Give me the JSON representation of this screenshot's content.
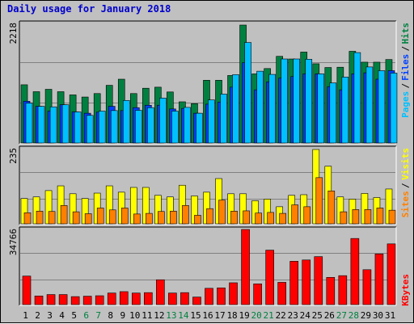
{
  "title": "Daily usage for January 2018",
  "colors": {
    "background": "#C0C0C0",
    "pages": "#00C0FF",
    "files": "#0040FF",
    "hits": "#008040",
    "sites": "#FF8000",
    "visits": "#FFFF00",
    "kbytes": "#FF0000"
  },
  "chart_data": [
    {
      "type": "bar",
      "panel": "top",
      "categories": [
        "1",
        "2",
        "3",
        "4",
        "5",
        "6",
        "7",
        "8",
        "9",
        "10",
        "11",
        "12",
        "13",
        "14",
        "15",
        "16",
        "17",
        "18",
        "19",
        "20",
        "21",
        "22",
        "23",
        "24",
        "25",
        "26",
        "27",
        "28",
        "29",
        "30",
        "31"
      ],
      "weekend_days": [
        "6",
        "7",
        "13",
        "14",
        "20",
        "21",
        "27",
        "28"
      ],
      "ylim": [
        0,
        2218
      ],
      "max_label": "2218",
      "right_labels": [
        "Pages",
        "Files",
        "Hits"
      ],
      "series": [
        {
          "name": "Hits",
          "values": [
            1095,
            965,
            1010,
            965,
            905,
            865,
            930,
            1085,
            1200,
            930,
            1030,
            1050,
            960,
            775,
            740,
            1180,
            1180,
            1270,
            2218,
            1300,
            1400,
            1630,
            1580,
            1710,
            1490,
            1420,
            1425,
            1725,
            1520,
            1520,
            1570
          ]
        },
        {
          "name": "Files",
          "values": [
            785,
            690,
            600,
            720,
            585,
            560,
            580,
            690,
            610,
            665,
            710,
            710,
            640,
            650,
            560,
            730,
            770,
            1050,
            1510,
            1000,
            1150,
            1220,
            1250,
            1300,
            1300,
            1060,
            1000,
            1300,
            1320,
            1200,
            1360
          ]
        },
        {
          "name": "Pages",
          "values": [
            750,
            690,
            680,
            720,
            585,
            520,
            600,
            610,
            800,
            615,
            665,
            845,
            600,
            670,
            560,
            810,
            920,
            1285,
            1890,
            1350,
            1290,
            1580,
            1580,
            1575,
            1300,
            1130,
            1240,
            1700,
            1430,
            1360,
            1315
          ]
        }
      ]
    },
    {
      "type": "bar",
      "panel": "middle",
      "categories": [
        "1",
        "2",
        "3",
        "4",
        "5",
        "6",
        "7",
        "8",
        "9",
        "10",
        "11",
        "12",
        "13",
        "14",
        "15",
        "16",
        "17",
        "18",
        "19",
        "20",
        "21",
        "22",
        "23",
        "24",
        "25",
        "26",
        "27",
        "28",
        "29",
        "30",
        "31"
      ],
      "ylim": [
        0,
        235
      ],
      "max_label": "235",
      "right_labels": [
        "Sites",
        "Visits"
      ],
      "series": [
        {
          "name": "Visits",
          "values": [
            80,
            85,
            105,
            120,
            95,
            80,
            97,
            120,
            100,
            115,
            115,
            90,
            85,
            122,
            88,
            100,
            143,
            95,
            95,
            73,
            78,
            54,
            90,
            92,
            235,
            182,
            85,
            78,
            96,
            83,
            110
          ]
        },
        {
          "name": "Sites",
          "values": [
            35,
            40,
            39,
            58,
            38,
            32,
            50,
            44,
            50,
            31,
            33,
            39,
            40,
            58,
            27,
            48,
            75,
            40,
            41,
            34,
            36,
            33,
            60,
            54,
            146,
            104,
            38,
            45,
            45,
            50,
            43
          ]
        }
      ]
    },
    {
      "type": "bar",
      "panel": "bottom",
      "categories": [
        "1",
        "2",
        "3",
        "4",
        "5",
        "6",
        "7",
        "8",
        "9",
        "10",
        "11",
        "12",
        "13",
        "14",
        "15",
        "16",
        "17",
        "18",
        "19",
        "20",
        "21",
        "22",
        "23",
        "24",
        "25",
        "26",
        "27",
        "28",
        "29",
        "30",
        "31"
      ],
      "ylim": [
        0,
        34766
      ],
      "max_label": "34766",
      "right_labels": [
        "KBytes"
      ],
      "series": [
        {
          "name": "KBytes",
          "values": [
            13200,
            4000,
            4650,
            4650,
            3700,
            3900,
            4100,
            5350,
            6000,
            5350,
            5550,
            11500,
            5350,
            5550,
            3500,
            7550,
            7750,
            10100,
            34766,
            9600,
            25200,
            10300,
            20050,
            20650,
            22200,
            12600,
            13400,
            30600,
            16150,
            23450,
            28100
          ]
        }
      ]
    }
  ]
}
